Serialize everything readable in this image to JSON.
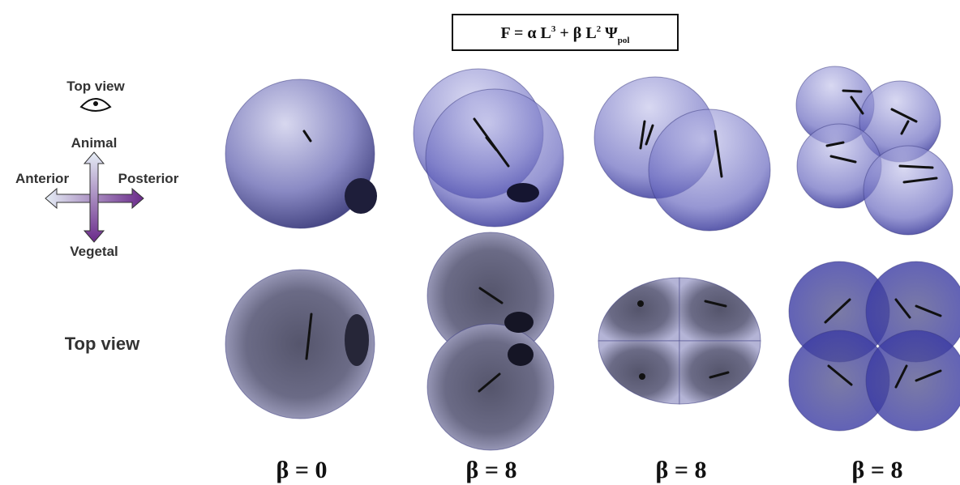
{
  "formula": {
    "parts": [
      "F = α L",
      "3",
      "+ β L",
      "2",
      "Ψ",
      "pol"
    ]
  },
  "legend": {
    "view": "Top view",
    "animal": "Animal",
    "anterior": "Anterior",
    "posterior": "Posterior",
    "vegetal": "Vegetal"
  },
  "row_label": "Top view",
  "columns": [
    {
      "label": "β = 0"
    },
    {
      "label": "β = 8"
    },
    {
      "label": "β = 8"
    },
    {
      "label": "β = 8"
    }
  ]
}
